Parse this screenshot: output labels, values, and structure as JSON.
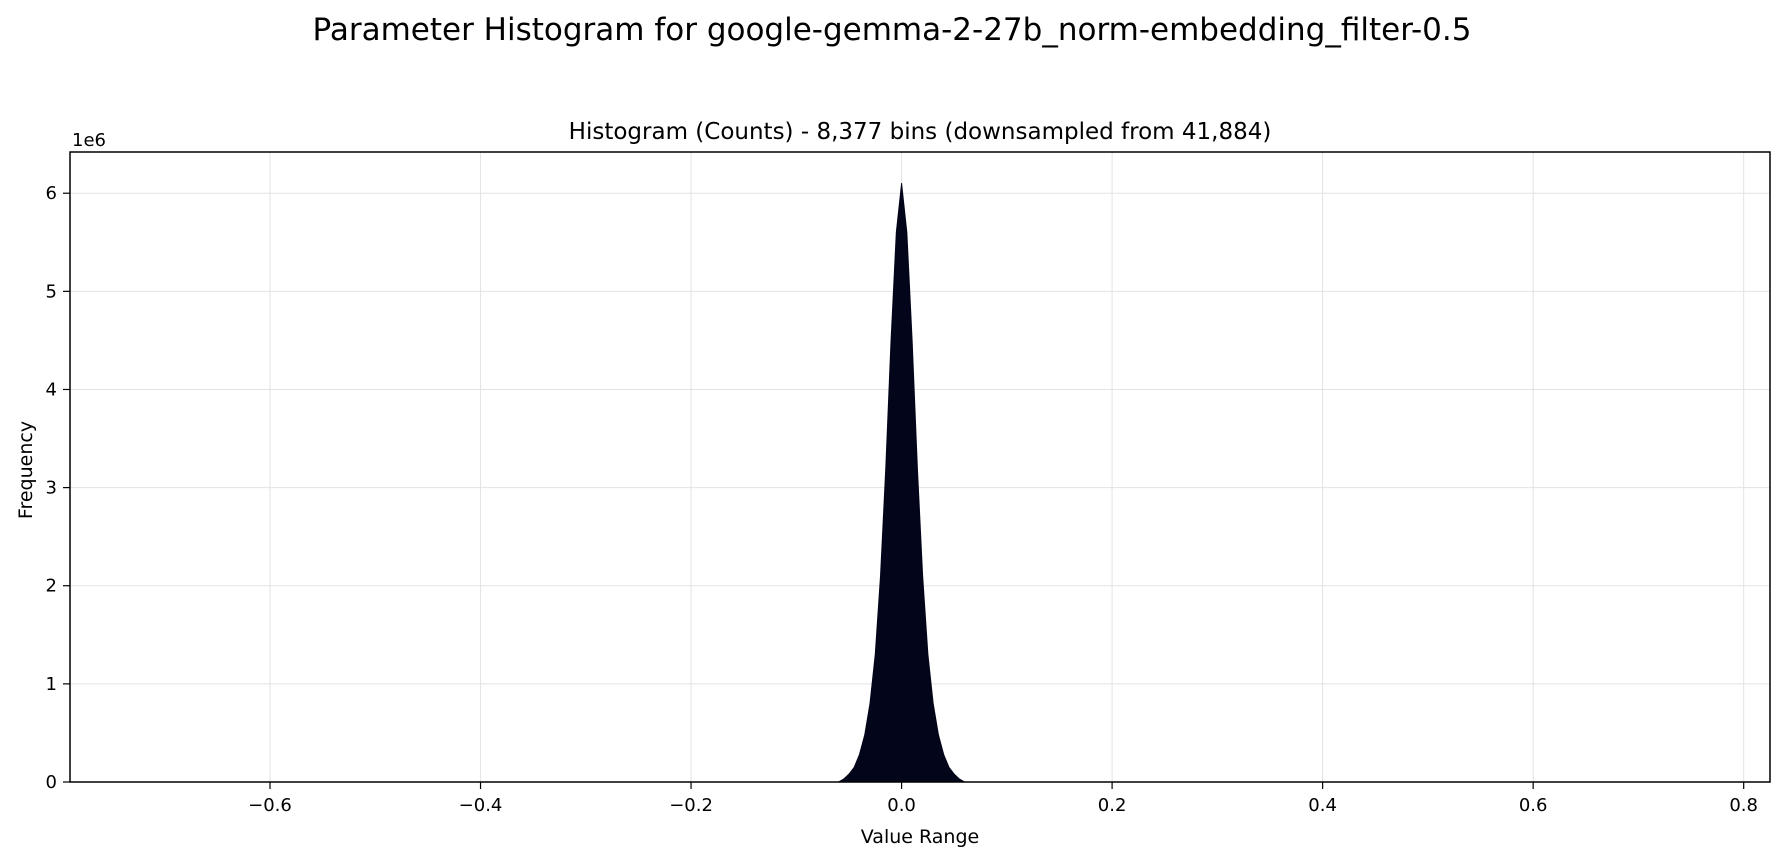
{
  "figure": {
    "suptitle": "Parameter Histogram for google-gemma-2-27b_norm-embedding_filter-0.5"
  },
  "colors": {
    "fill": "#03051a",
    "grid": "#e3e3e3",
    "axis": "#000000",
    "background": "#ffffff"
  },
  "chart_data": {
    "type": "area",
    "title": "Histogram (Counts) - 8,377 bins (downsampled from 41,884)",
    "xlabel": "Value Range",
    "ylabel": "Frequency",
    "y_offset_label": "1e6",
    "xlim": [
      -0.79,
      0.825
    ],
    "ylim": [
      0,
      6.42
    ],
    "x_ticks": [
      -0.6,
      -0.4,
      -0.2,
      0.0,
      0.2,
      0.4,
      0.6,
      0.8
    ],
    "x_tick_labels": [
      "−0.6",
      "−0.4",
      "−0.2",
      "0.0",
      "0.2",
      "0.4",
      "0.6",
      "0.8"
    ],
    "y_ticks": [
      0,
      1,
      2,
      3,
      4,
      5,
      6
    ],
    "y_tick_labels": [
      "0",
      "1",
      "2",
      "3",
      "4",
      "5",
      "6"
    ],
    "grid": true,
    "series": [
      {
        "x": [
          -0.06,
          -0.055,
          -0.05,
          -0.045,
          -0.04,
          -0.035,
          -0.03,
          -0.025,
          -0.02,
          -0.015,
          -0.01,
          -0.005,
          0.0,
          0.005,
          0.01,
          0.015,
          0.02,
          0.025,
          0.03,
          0.035,
          0.04,
          0.045,
          0.05,
          0.055,
          0.06
        ],
        "y": [
          0.0,
          0.03,
          0.08,
          0.15,
          0.28,
          0.48,
          0.8,
          1.3,
          2.1,
          3.2,
          4.5,
          5.6,
          6.1,
          5.6,
          4.5,
          3.2,
          2.1,
          1.3,
          0.8,
          0.48,
          0.28,
          0.15,
          0.08,
          0.03,
          0.0
        ]
      }
    ]
  }
}
